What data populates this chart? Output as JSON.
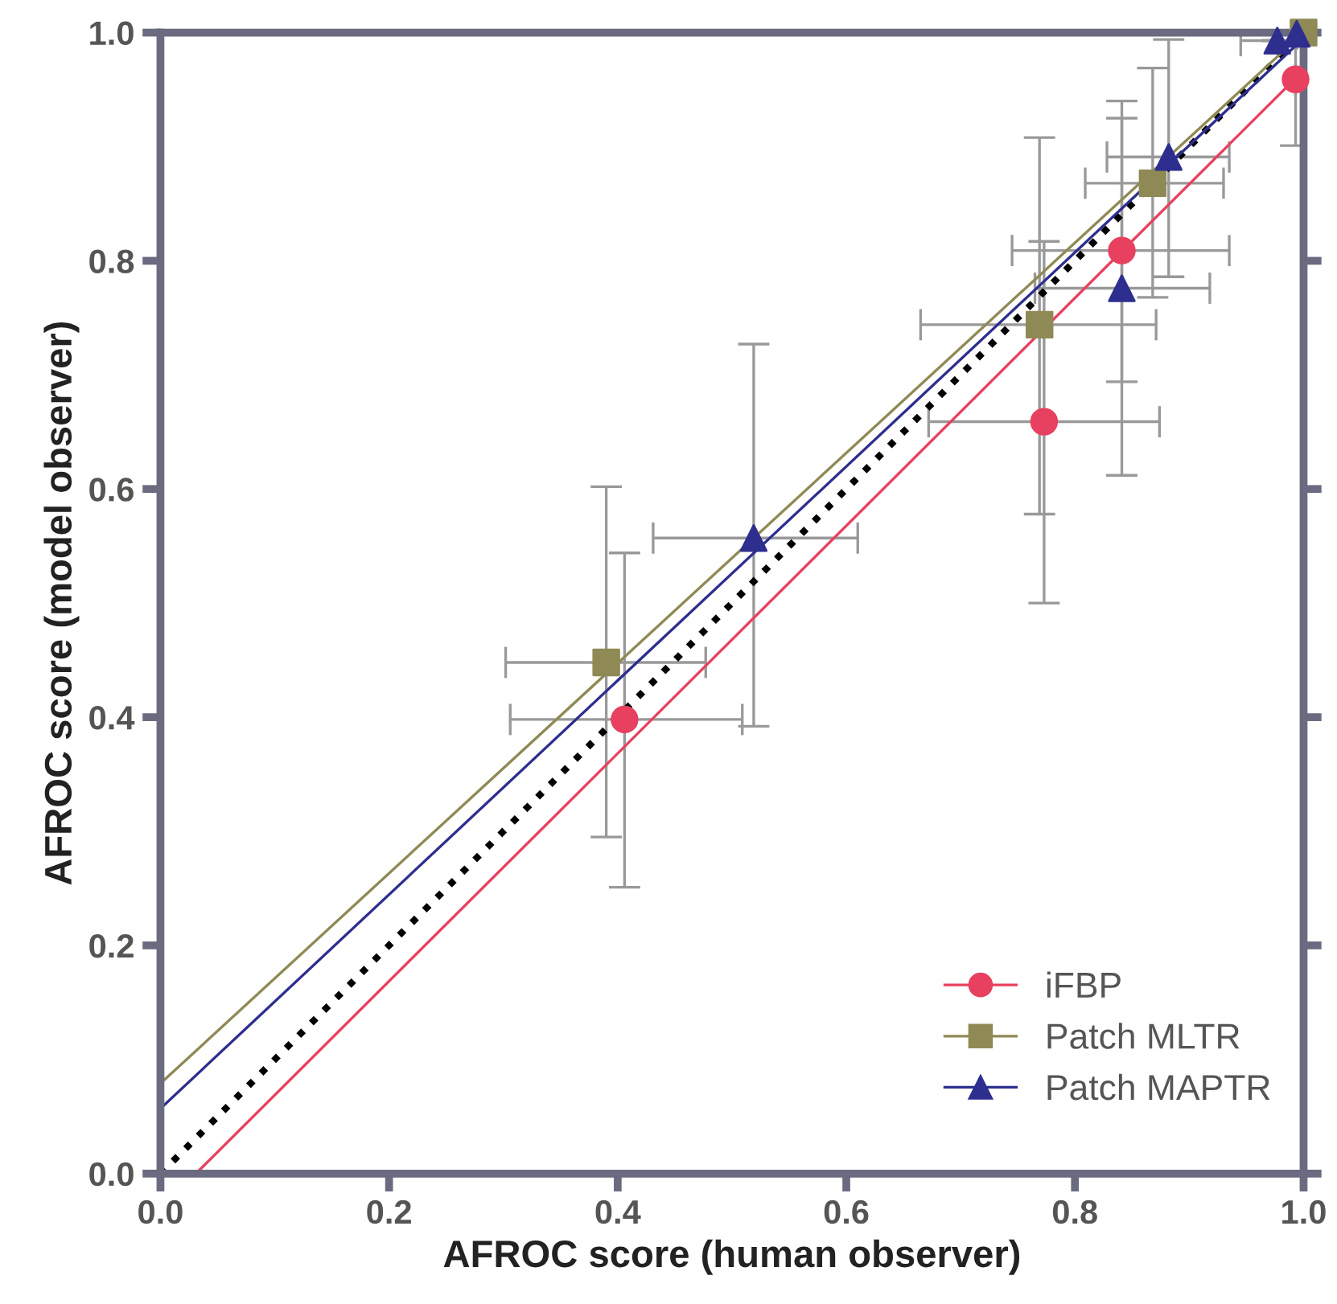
{
  "chart_data": {
    "type": "scatter",
    "xlabel": "AFROC score (human observer)",
    "ylabel": "AFROC score (model observer)",
    "xlim": [
      0,
      1
    ],
    "ylim": [
      0,
      1
    ],
    "xticks": [
      {
        "value": 0,
        "label": "0.0"
      },
      {
        "value": 0.2,
        "label": "0.2"
      },
      {
        "value": 0.4,
        "label": "0.4"
      },
      {
        "value": 0.6,
        "label": "0.6"
      },
      {
        "value": 0.8,
        "label": "0.8"
      },
      {
        "value": 1,
        "label": "1.0"
      }
    ],
    "yticks": [
      {
        "value": 0,
        "label": "0.0"
      },
      {
        "value": 0.2,
        "label": "0.2"
      },
      {
        "value": 0.4,
        "label": "0.4"
      },
      {
        "value": 0.6,
        "label": "0.6"
      },
      {
        "value": 0.8,
        "label": "0.8"
      },
      {
        "value": 1,
        "label": "1.0"
      }
    ],
    "grid": false,
    "legend": "bottom right",
    "series": [
      {
        "type": "line",
        "x": [
          0,
          1
        ],
        "values": [
          0,
          1
        ],
        "color": "#000000",
        "line_style": "dotted"
      },
      {
        "type": "line",
        "x": [
          0.031,
          1
        ],
        "values": [
          0,
          0.967
        ],
        "color": "#e8405f",
        "line_style": "solid"
      },
      {
        "type": "line",
        "x": [
          0,
          1
        ],
        "values": [
          0.079,
          1.0
        ],
        "color": "#8f8a55",
        "line_style": "solid"
      },
      {
        "type": "line",
        "x": [
          0,
          1
        ],
        "values": [
          0.057,
          0.995
        ],
        "color": "#2e2e8f",
        "line_style": "solid"
      },
      {
        "name": "iFBP",
        "marker": "circle",
        "color": "#e8405f",
        "x": [
          0.406,
          0.773,
          0.841,
          0.993
        ],
        "values": [
          0.398,
          0.659,
          0.809,
          0.959
        ],
        "xerrors": [
          [
            0.306,
            0.509
          ],
          [
            0.672,
            0.874
          ],
          [
            0.745,
            0.935
          ],
          null
        ],
        "errors": [
          [
            0.251,
            0.544
          ],
          [
            0.5,
            0.817
          ],
          [
            0.694,
            0.925
          ],
          [
            0.901,
            1.0
          ]
        ]
      },
      {
        "name": "Patch MLTR",
        "marker": "square",
        "color": "#8f8a55",
        "x": [
          0.39,
          0.769,
          0.868,
          1.0
        ],
        "values": [
          0.448,
          0.744,
          0.868,
          1.0
        ],
        "xerrors": [
          [
            0.302,
            0.477
          ],
          [
            0.665,
            0.871
          ],
          [
            0.809,
            0.93
          ],
          null
        ],
        "errors": [
          [
            0.295,
            0.602
          ],
          [
            0.578,
            0.908
          ],
          [
            0.768,
            0.969
          ],
          null
        ]
      },
      {
        "name": "Patch MAPTR",
        "marker": "triangle",
        "color": "#2e2e8f",
        "x": [
          0.519,
          0.841,
          0.882,
          0.977,
          0.994
        ],
        "values": [
          0.557,
          0.776,
          0.891,
          0.993,
          0.999
        ],
        "xerrors": [
          [
            0.431,
            0.61
          ],
          [
            0.765,
            0.918
          ],
          [
            0.828,
            0.935
          ],
          [
            0.945,
            1.0
          ],
          null
        ],
        "errors": [
          [
            0.392,
            0.727
          ],
          [
            0.612,
            0.94
          ],
          [
            0.786,
            0.994
          ],
          null,
          null
        ]
      }
    ]
  }
}
